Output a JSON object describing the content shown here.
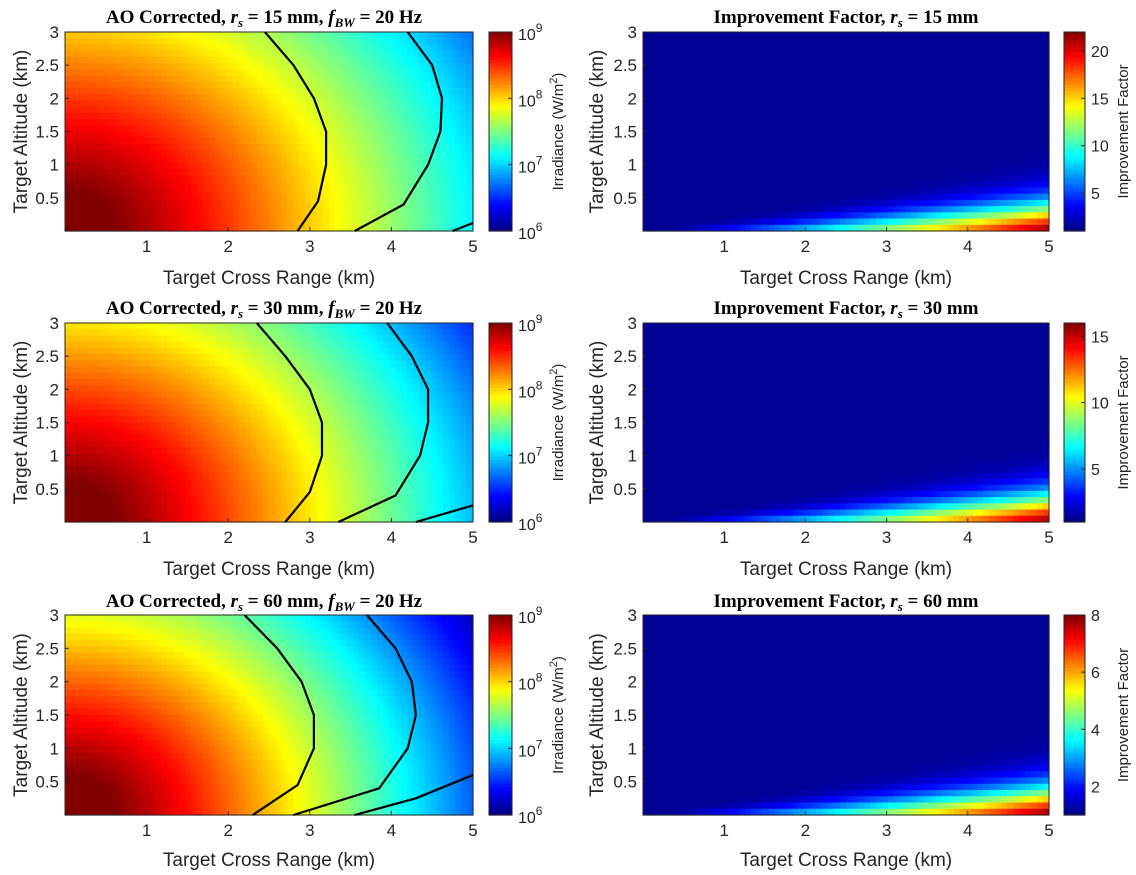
{
  "chart_data": [
    {
      "type": "heatmap",
      "title": {
        "main": "AO Corrected, ",
        "rs_sym": "r",
        "rs_sub": "s",
        "rs_val": " = 15 mm, ",
        "fbw_sym": "f",
        "fbw_sub": "BW",
        "fbw_val": " = 20 Hz"
      },
      "xlabel": "Target Cross Range (km)",
      "ylabel": "Target Altitude (km)",
      "xlim": [
        0,
        5
      ],
      "ylim": [
        0,
        3
      ],
      "xticks": [
        "1",
        "2",
        "3",
        "4",
        "5"
      ],
      "yticks": [
        "0.5",
        "1",
        "1.5",
        "2",
        "2.5",
        "3"
      ],
      "colorbar": {
        "label": "Irradiance (W/m",
        "label_sup": "2",
        "label_end": ")",
        "scale": "log",
        "range": [
          1000000,
          1000000000
        ],
        "ticks": [
          {
            "base": "10",
            "exp": "6"
          },
          {
            "base": "10",
            "exp": "7"
          },
          {
            "base": "10",
            "exp": "8"
          },
          {
            "base": "10",
            "exp": "9"
          }
        ]
      },
      "irradiance_peak": 1000000000,
      "colormap": "jet",
      "contours": [
        [
          [
            2.45,
            3.0
          ],
          [
            2.8,
            2.5
          ],
          [
            3.05,
            2.0
          ],
          [
            3.2,
            1.5
          ],
          [
            3.2,
            1.0
          ],
          [
            3.1,
            0.45
          ],
          [
            2.85,
            0.0
          ]
        ],
        [
          [
            4.2,
            3.0
          ],
          [
            4.5,
            2.5
          ],
          [
            4.62,
            2.0
          ],
          [
            4.6,
            1.5
          ],
          [
            4.45,
            1.0
          ],
          [
            4.15,
            0.4
          ],
          [
            3.55,
            0.0
          ]
        ],
        [
          [
            4.75,
            0.0
          ],
          [
            5.0,
            0.12
          ]
        ]
      ],
      "falloff": 0.55
    },
    {
      "type": "heatmap",
      "title": {
        "main": "Improvement Factor, ",
        "rs_sym": "r",
        "rs_sub": "s",
        "rs_val": " = 15 mm"
      },
      "xlabel": "Target Cross Range (km)",
      "ylabel": "Target Altitude (km)",
      "xlim": [
        0,
        5
      ],
      "ylim": [
        0,
        3
      ],
      "xticks": [
        "1",
        "2",
        "3",
        "4",
        "5"
      ],
      "yticks": [
        "0.5",
        "1",
        "1.5",
        "2",
        "2.5",
        "3"
      ],
      "colorbar": {
        "label": "Improvement Factor",
        "scale": "linear",
        "range": [
          1,
          22
        ],
        "ticks": [
          "5",
          "10",
          "15",
          "20"
        ]
      },
      "peak": 22,
      "colormap": "jet"
    },
    {
      "type": "heatmap",
      "title": {
        "main": "AO Corrected, ",
        "rs_sym": "r",
        "rs_sub": "s",
        "rs_val": " = 30 mm, ",
        "fbw_sym": "f",
        "fbw_sub": "BW",
        "fbw_val": " = 20 Hz"
      },
      "xlabel": "Target Cross Range (km)",
      "ylabel": "Target Altitude (km)",
      "xlim": [
        0,
        5
      ],
      "ylim": [
        0,
        3
      ],
      "xticks": [
        "1",
        "2",
        "3",
        "4",
        "5"
      ],
      "yticks": [
        "0.5",
        "1",
        "1.5",
        "2",
        "2.5",
        "3"
      ],
      "colorbar": {
        "label": "Irradiance (W/m",
        "label_sup": "2",
        "label_end": ")",
        "scale": "log",
        "range": [
          1000000,
          1000000000
        ],
        "ticks": [
          {
            "base": "10",
            "exp": "6"
          },
          {
            "base": "10",
            "exp": "7"
          },
          {
            "base": "10",
            "exp": "8"
          },
          {
            "base": "10",
            "exp": "9"
          }
        ]
      },
      "irradiance_peak": 1000000000,
      "colormap": "jet",
      "contours": [
        [
          [
            2.35,
            3.0
          ],
          [
            2.7,
            2.5
          ],
          [
            3.0,
            2.0
          ],
          [
            3.15,
            1.5
          ],
          [
            3.15,
            1.0
          ],
          [
            3.0,
            0.45
          ],
          [
            2.7,
            0.0
          ]
        ],
        [
          [
            3.95,
            3.0
          ],
          [
            4.25,
            2.5
          ],
          [
            4.45,
            2.0
          ],
          [
            4.45,
            1.5
          ],
          [
            4.35,
            1.0
          ],
          [
            4.05,
            0.4
          ],
          [
            3.35,
            0.0
          ]
        ],
        [
          [
            4.3,
            0.0
          ],
          [
            5.0,
            0.25
          ]
        ]
      ],
      "falloff": 0.6
    },
    {
      "type": "heatmap",
      "title": {
        "main": "Improvement Factor, ",
        "rs_sym": "r",
        "rs_sub": "s",
        "rs_val": " = 30 mm"
      },
      "xlabel": "Target Cross Range (km)",
      "ylabel": "Target Altitude (km)",
      "xlim": [
        0,
        5
      ],
      "ylim": [
        0,
        3
      ],
      "xticks": [
        "1",
        "2",
        "3",
        "4",
        "5"
      ],
      "yticks": [
        "0.5",
        "1",
        "1.5",
        "2",
        "2.5",
        "3"
      ],
      "colorbar": {
        "label": "Improvement Factor",
        "scale": "linear",
        "range": [
          1,
          16
        ],
        "ticks": [
          "5",
          "10",
          "15"
        ]
      },
      "peak": 16,
      "colormap": "jet"
    },
    {
      "type": "heatmap",
      "title": {
        "main": "AO Corrected, ",
        "rs_sym": "r",
        "rs_sub": "s",
        "rs_val": " = 60 mm, ",
        "fbw_sym": "f",
        "fbw_sub": "BW",
        "fbw_val": " = 20 Hz"
      },
      "xlabel": "Target Cross Range (km)",
      "ylabel": "Target Altitude (km)",
      "xlim": [
        0,
        5
      ],
      "ylim": [
        0,
        3
      ],
      "xticks": [
        "1",
        "2",
        "3",
        "4",
        "5"
      ],
      "yticks": [
        "0.5",
        "1",
        "1.5",
        "2",
        "2.5",
        "3"
      ],
      "colorbar": {
        "label": "Irradiance (W/m",
        "label_sup": "2",
        "label_end": ")",
        "scale": "log",
        "range": [
          1000000,
          1000000000
        ],
        "ticks": [
          {
            "base": "10",
            "exp": "6"
          },
          {
            "base": "10",
            "exp": "7"
          },
          {
            "base": "10",
            "exp": "8"
          },
          {
            "base": "10",
            "exp": "9"
          }
        ]
      },
      "irradiance_peak": 1000000000,
      "colormap": "jet",
      "contours": [
        [
          [
            2.2,
            3.0
          ],
          [
            2.6,
            2.5
          ],
          [
            2.9,
            2.0
          ],
          [
            3.05,
            1.5
          ],
          [
            3.05,
            1.0
          ],
          [
            2.85,
            0.45
          ],
          [
            2.3,
            0.0
          ]
        ],
        [
          [
            3.7,
            3.0
          ],
          [
            4.05,
            2.5
          ],
          [
            4.25,
            2.0
          ],
          [
            4.3,
            1.5
          ],
          [
            4.2,
            1.0
          ],
          [
            3.85,
            0.4
          ],
          [
            2.8,
            0.0
          ]
        ],
        [
          [
            3.55,
            0.0
          ],
          [
            4.3,
            0.25
          ],
          [
            5.0,
            0.6
          ]
        ]
      ],
      "falloff": 0.68
    },
    {
      "type": "heatmap",
      "title": {
        "main": "Improvement Factor, ",
        "rs_sym": "r",
        "rs_sub": "s",
        "rs_val": " = 60 mm"
      },
      "xlabel": "Target Cross Range (km)",
      "ylabel": "Target Altitude (km)",
      "xlim": [
        0,
        5
      ],
      "ylim": [
        0,
        3
      ],
      "xticks": [
        "1",
        "2",
        "3",
        "4",
        "5"
      ],
      "yticks": [
        "0.5",
        "1",
        "1.5",
        "2",
        "2.5",
        "3"
      ],
      "colorbar": {
        "label": "Improvement Factor",
        "scale": "linear",
        "range": [
          1,
          8
        ],
        "ticks": [
          "2",
          "4",
          "6",
          "8"
        ]
      },
      "peak": 8,
      "colormap": "jet"
    }
  ]
}
